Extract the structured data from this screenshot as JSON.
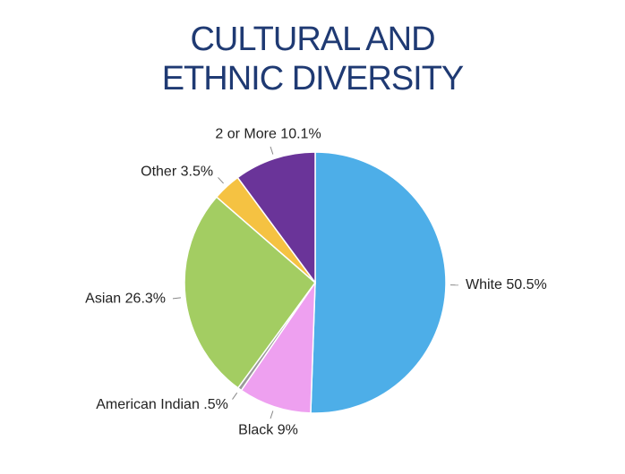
{
  "chart_data": {
    "type": "pie",
    "title": "CULTURAL AND ETHNIC DIVERSITY",
    "categories": [
      "White",
      "Black",
      "American Indian",
      "Asian",
      "Other",
      "2 or More"
    ],
    "values": [
      50.5,
      9,
      0.5,
      26.3,
      3.5,
      10.1
    ],
    "value_labels": [
      "50.5%",
      "9%",
      ".5%",
      "26.3%",
      "3.5%",
      "10.1%"
    ],
    "colors": [
      "#4daee8",
      "#eea0f0",
      "#9a9a9a",
      "#a3cd62",
      "#f5c242",
      "#6a3499"
    ]
  }
}
